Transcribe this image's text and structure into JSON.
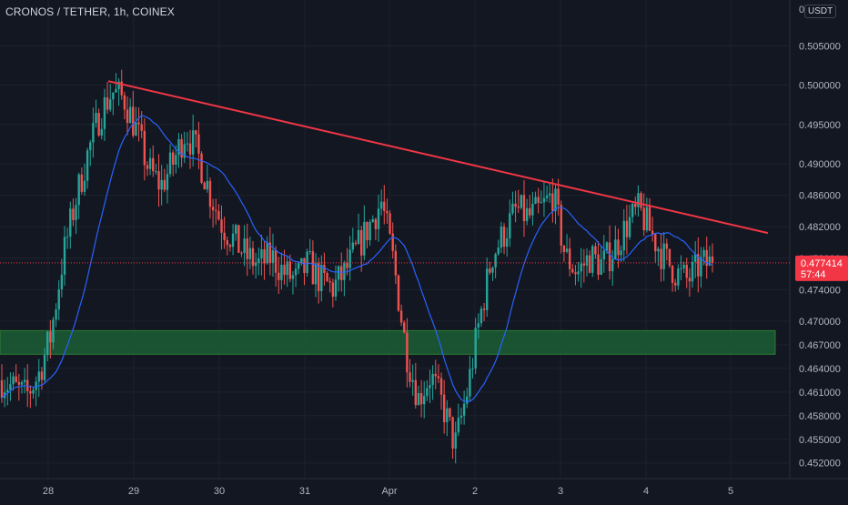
{
  "header": {
    "title": "CRONOS / TETHER, 1h, COINEX",
    "currency": "USDT",
    "top_value": "0"
  },
  "price_label": {
    "value": "0.477414",
    "countdown": "57:44",
    "color": "#f23645"
  },
  "colors": {
    "background": "#131722",
    "up": "#26a69a",
    "down": "#ef5350",
    "ma": "#2962ff",
    "trendline": "#f23645",
    "zone_fill": "#1b5e35",
    "zone_border": "#2e7d32",
    "grid": "#1e222d"
  },
  "chart_data": {
    "type": "candlestick",
    "title": "CRONOS / TETHER, 1h, COINEX",
    "x_tick_labels": [
      "28",
      "29",
      "30",
      "31",
      "Apr",
      "2",
      "3",
      "4",
      "5"
    ],
    "y_tick_labels": [
      "0.505000",
      "0.500000",
      "0.495000",
      "0.490000",
      "0.486000",
      "0.482000",
      "0.478000",
      "0.474000",
      "0.470000",
      "0.467000",
      "0.464000",
      "0.461000",
      "0.458000",
      "0.455000",
      "0.452000"
    ],
    "last_price": 0.477414,
    "price_series_approx": [
      0.4625,
      0.4615,
      0.4605,
      0.4632,
      0.4682,
      0.4782,
      0.4852,
      0.4912,
      0.4962,
      0.4992,
      0.4982,
      0.4942,
      0.4892,
      0.4872,
      0.4902,
      0.4942,
      0.4912,
      0.4862,
      0.4822,
      0.4802,
      0.4782,
      0.4772,
      0.4782,
      0.4762,
      0.4752,
      0.4772,
      0.4752,
      0.4742,
      0.4762,
      0.4792,
      0.4822,
      0.4852,
      0.4772,
      0.4662,
      0.4602,
      0.4632,
      0.4592,
      0.4542,
      0.4612,
      0.4702,
      0.4782,
      0.4812,
      0.4842,
      0.4832,
      0.4842,
      0.4862,
      0.4782,
      0.4762,
      0.4782,
      0.4772,
      0.4792,
      0.4822,
      0.4842,
      0.4812,
      0.4782,
      0.4762,
      0.4752,
      0.4772,
      0.4774
    ],
    "support_zone": [
      0.4658,
      0.4688
    ],
    "trendline": {
      "from": {
        "x": "28",
        "y": 0.5005
      },
      "to": {
        "x": "5",
        "y": 0.4812
      }
    },
    "moving_average": true
  }
}
